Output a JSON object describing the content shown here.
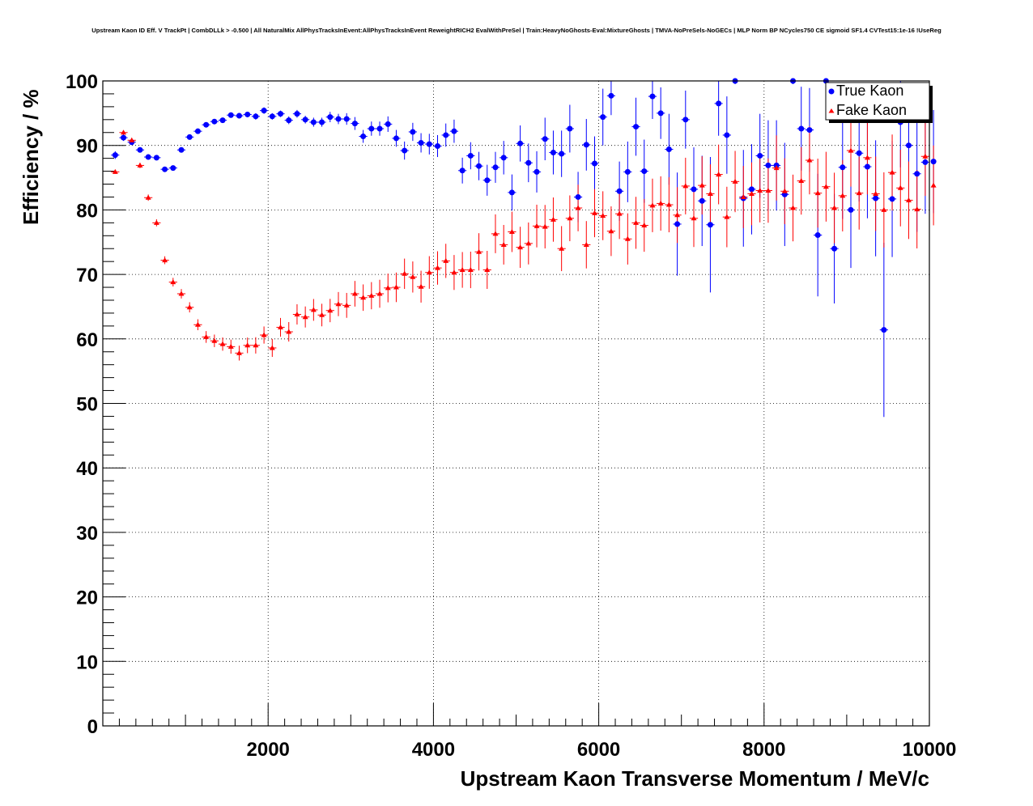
{
  "chart_data": {
    "type": "scatter",
    "title": "Upstream Kaon ID Eff. V TrackPt | CombDLLk > -0.500 | All NaturalMix AllPhysTracksInEvent:AllPhysTracksInEvent ReweightRICH2 EvalWithPreSel | Train:HeavyNoGhosts-Eval:MixtureGhosts | TMVA-NoPreSels-NoGECs | MLP Norm BP NCycles750 CE sigmoid SF1.4 CVTest15:1e-16 !UseReg",
    "xlabel": "Upstream Kaon Transverse Momentum / MeV/c",
    "ylabel": "Efficiency / %",
    "xlim": [
      0,
      10000
    ],
    "ylim": [
      0,
      100
    ],
    "xticks": [
      2000,
      4000,
      6000,
      8000,
      10000
    ],
    "yticks": [
      0,
      10,
      20,
      30,
      40,
      50,
      60,
      70,
      80,
      90,
      100
    ],
    "grid": true,
    "legend_position": "top-right",
    "bin_width": 100,
    "series": [
      {
        "name": "True Kaon",
        "color": "#0000ff",
        "marker": "circle",
        "x": [
          150,
          250,
          350,
          450,
          550,
          650,
          750,
          850,
          950,
          1050,
          1150,
          1250,
          1350,
          1450,
          1550,
          1650,
          1750,
          1850,
          1950,
          2050,
          2150,
          2250,
          2350,
          2450,
          2550,
          2650,
          2750,
          2850,
          2950,
          3050,
          3150,
          3250,
          3350,
          3450,
          3550,
          3650,
          3750,
          3850,
          3950,
          4050,
          4150,
          4250,
          4350,
          4450,
          4550,
          4650,
          4750,
          4850,
          4950,
          5050,
          5150,
          5250,
          5350,
          5450,
          5550,
          5650,
          5750,
          5850,
          5950,
          6050,
          6150,
          6250,
          6350,
          6450,
          6550,
          6650,
          6750,
          6850,
          6950,
          7050,
          7150,
          7250,
          7350,
          7450,
          7550,
          7650,
          7750,
          7850,
          7950,
          8050,
          8150,
          8250,
          8350,
          8450,
          8550,
          8650,
          8750,
          8850,
          8950,
          9050,
          9150,
          9250,
          9350,
          9450,
          9550,
          9650,
          9750,
          9850,
          9950,
          10050
        ],
        "y": [
          88.5,
          91.2,
          90.5,
          89.3,
          88.2,
          88.1,
          86.3,
          86.5,
          89.3,
          91.3,
          92.2,
          93.2,
          93.7,
          93.9,
          94.7,
          94.6,
          94.8,
          94.5,
          95.4,
          94.5,
          94.9,
          93.9,
          94.9,
          94.0,
          93.6,
          93.6,
          94.4,
          94.1,
          94.1,
          93.4,
          91.4,
          92.6,
          92.6,
          93.3,
          91.1,
          89.2,
          92.1,
          90.4,
          90.2,
          89.9,
          91.6,
          92.2,
          86.1,
          88.4,
          86.8,
          84.6,
          86.6,
          88.1,
          82.7,
          90.3,
          87.3,
          85.9,
          91.0,
          88.9,
          88.7,
          92.6,
          82.0,
          90.1,
          87.2,
          94.4,
          97.7,
          82.9,
          85.9,
          92.9,
          86.0,
          97.6,
          95.0,
          89.4,
          77.8,
          94.0,
          83.2,
          81.4,
          77.7,
          96.5,
          91.6,
          100.0,
          81.8,
          83.2,
          88.4,
          86.9,
          86.9,
          82.4,
          100.0,
          92.6,
          92.4,
          76.1,
          100.0,
          74.0,
          86.6,
          80.0,
          88.8,
          86.7,
          81.8,
          61.4,
          81.7,
          93.6,
          90.0,
          85.6,
          87.4,
          87.5
        ],
        "y_err": [
          0.6,
          0.5,
          0.4,
          0.4,
          0.4,
          0.4,
          0.4,
          0.4,
          0.4,
          0.4,
          0.4,
          0.4,
          0.4,
          0.4,
          0.4,
          0.4,
          0.4,
          0.5,
          0.5,
          0.5,
          0.5,
          0.6,
          0.6,
          0.6,
          0.7,
          0.7,
          0.8,
          0.8,
          0.9,
          1.0,
          1.0,
          1.1,
          1.1,
          1.2,
          1.3,
          1.4,
          1.4,
          1.5,
          1.6,
          1.7,
          1.8,
          1.8,
          2.0,
          2.1,
          2.2,
          2.4,
          2.4,
          2.6,
          2.8,
          2.8,
          3.0,
          3.2,
          3.3,
          3.4,
          3.6,
          3.7,
          3.9,
          4.0,
          4.2,
          4.4,
          3.0,
          4.6,
          4.7,
          4.5,
          4.9,
          3.5,
          4.0,
          5.5,
          8.0,
          4.5,
          6.5,
          7.0,
          10.5,
          5.0,
          6.0,
          0.5,
          7.5,
          7.0,
          6.5,
          7.0,
          7.0,
          8.0,
          0.5,
          6.5,
          6.5,
          9.5,
          0.5,
          8.5,
          8.0,
          9.0,
          7.5,
          8.0,
          9.0,
          13.5,
          9.0,
          7.0,
          9.0,
          9.0,
          8.0,
          8.0
        ]
      },
      {
        "name": "Fake Kaon",
        "color": "#ff0000",
        "marker": "triangle",
        "x": [
          150,
          250,
          350,
          450,
          550,
          650,
          750,
          850,
          950,
          1050,
          1150,
          1250,
          1350,
          1450,
          1550,
          1650,
          1750,
          1850,
          1950,
          2050,
          2150,
          2250,
          2350,
          2450,
          2550,
          2650,
          2750,
          2850,
          2950,
          3050,
          3150,
          3250,
          3350,
          3450,
          3550,
          3650,
          3750,
          3850,
          3950,
          4050,
          4150,
          4250,
          4350,
          4450,
          4550,
          4650,
          4750,
          4850,
          4950,
          5050,
          5150,
          5250,
          5350,
          5450,
          5550,
          5650,
          5750,
          5850,
          5950,
          6050,
          6150,
          6250,
          6350,
          6450,
          6550,
          6650,
          6750,
          6850,
          6950,
          7050,
          7150,
          7250,
          7350,
          7450,
          7550,
          7650,
          7750,
          7850,
          7950,
          8050,
          8150,
          8250,
          8350,
          8450,
          8550,
          8650,
          8750,
          8850,
          8950,
          9050,
          9150,
          9250,
          9350,
          9450,
          9550,
          9650,
          9750,
          9850,
          9950,
          10050
        ],
        "y": [
          85.9,
          92.0,
          90.8,
          86.9,
          81.9,
          78.0,
          72.2,
          68.8,
          67.0,
          64.9,
          62.2,
          60.3,
          59.7,
          59.2,
          58.8,
          57.8,
          59.0,
          59.0,
          60.6,
          58.6,
          61.8,
          61.1,
          63.8,
          63.4,
          64.5,
          63.7,
          64.4,
          65.4,
          65.2,
          67.0,
          66.4,
          66.7,
          67.0,
          67.9,
          68.0,
          70.1,
          69.6,
          68.1,
          70.3,
          71.0,
          72.1,
          70.3,
          70.7,
          70.7,
          73.5,
          70.7,
          76.3,
          74.6,
          76.6,
          74.2,
          74.8,
          77.5,
          77.4,
          78.5,
          74.0,
          78.7,
          80.3,
          74.6,
          79.5,
          79.1,
          76.7,
          79.4,
          75.5,
          78.0,
          77.6,
          80.7,
          81.0,
          80.8,
          79.2,
          83.7,
          78.7,
          83.8,
          82.5,
          85.5,
          78.9,
          84.4,
          82.0,
          82.5,
          83.0,
          83.0,
          86.5,
          82.9,
          80.3,
          84.5,
          87.7,
          82.6,
          83.6,
          80.3,
          82.2,
          89.2,
          82.6,
          88.1,
          82.5,
          80.0,
          85.8,
          83.4,
          81.5,
          80.1,
          88.3,
          83.8
        ]
      }
    ]
  }
}
